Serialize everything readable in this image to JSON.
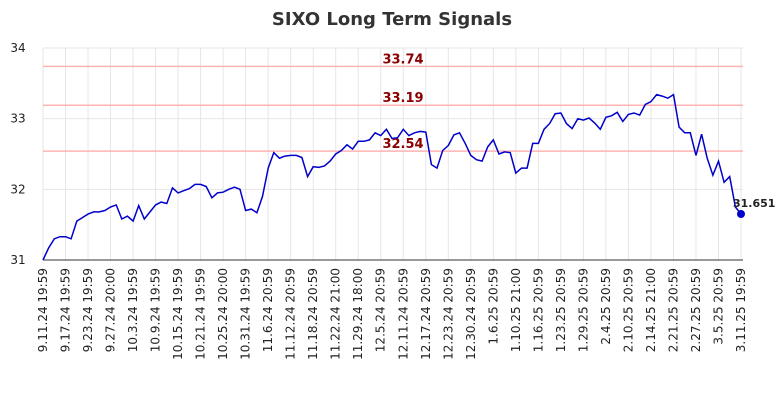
{
  "chart_data": {
    "type": "line",
    "title": "SIXO Long Term Signals",
    "categories": [
      "9.11.24 19:59",
      null,
      null,
      null,
      "9.17.24 19:59",
      null,
      null,
      null,
      "9.23.24 19:59",
      null,
      null,
      null,
      "9.27.24 20:00",
      null,
      null,
      null,
      "10.3.24 19:59",
      null,
      null,
      null,
      "10.9.24 19:59",
      null,
      null,
      null,
      "10.15.24 19:59",
      null,
      null,
      null,
      "10.21.24 19:59",
      null,
      null,
      null,
      "10.25.24 20:00",
      null,
      null,
      null,
      "10.31.24 19:59",
      null,
      null,
      null,
      "11.6.24 20:59",
      null,
      null,
      null,
      "11.12.24 20:59",
      null,
      null,
      null,
      "11.18.24 20:59",
      null,
      null,
      null,
      "11.22.24 21:00",
      null,
      null,
      null,
      "11.29.24 18:00",
      null,
      null,
      null,
      "12.5.24 20:59",
      null,
      null,
      null,
      "12.11.24 20:59",
      null,
      null,
      null,
      "12.17.24 20:59",
      null,
      null,
      null,
      "12.23.24 20:59",
      null,
      null,
      null,
      "12.30.24 20:59",
      null,
      null,
      null,
      "1.6.25 20:59",
      null,
      null,
      null,
      "1.10.25 21:00",
      null,
      null,
      null,
      "1.16.25 20:59",
      null,
      null,
      null,
      "1.23.25 20:59",
      null,
      null,
      null,
      "1.29.25 20:59",
      null,
      null,
      null,
      "2.4.25 20:59",
      null,
      null,
      null,
      "2.10.25 20:59",
      null,
      null,
      null,
      "2.14.25 21:00",
      null,
      null,
      null,
      "2.21.25 20:59",
      null,
      null,
      null,
      "2.27.25 20:59",
      null,
      null,
      null,
      "3.5.25 20:59",
      null,
      null,
      null,
      "3.11.25 19:59"
    ],
    "series": [
      {
        "color": "#0000cc",
        "values": [
          31.0,
          31.17,
          31.3,
          31.33,
          31.33,
          31.3,
          31.55,
          31.6,
          31.65,
          31.68,
          31.68,
          31.7,
          31.75,
          31.78,
          31.58,
          31.62,
          31.55,
          31.77,
          31.58,
          31.68,
          31.78,
          31.82,
          31.8,
          32.02,
          31.95,
          31.98,
          32.01,
          32.07,
          32.07,
          32.04,
          31.88,
          31.95,
          31.96,
          32.0,
          32.03,
          32.0,
          31.7,
          31.72,
          31.67,
          31.9,
          32.3,
          32.52,
          32.44,
          32.47,
          32.48,
          32.48,
          32.45,
          32.18,
          32.32,
          32.31,
          32.33,
          32.4,
          32.5,
          32.55,
          32.63,
          32.57,
          32.68,
          32.68,
          32.7,
          32.8,
          32.76,
          32.85,
          32.72,
          32.73,
          32.85,
          32.76,
          32.8,
          32.82,
          32.81,
          32.35,
          32.3,
          32.55,
          32.62,
          32.77,
          32.8,
          32.65,
          32.48,
          32.42,
          32.4,
          32.6,
          32.7,
          32.5,
          32.53,
          32.52,
          32.23,
          32.3,
          32.3,
          32.65,
          32.65,
          32.85,
          32.93,
          33.07,
          33.08,
          32.93,
          32.86,
          33.0,
          32.98,
          33.01,
          32.94,
          32.85,
          33.02,
          33.04,
          33.09,
          32.96,
          33.06,
          33.08,
          33.05,
          33.2,
          33.24,
          33.34,
          33.32,
          33.29,
          33.34,
          32.88,
          32.8,
          32.8,
          32.48,
          32.78,
          32.44,
          32.2,
          32.4,
          32.1,
          32.18,
          31.75,
          31.651
        ]
      }
    ],
    "reference_lines": [
      {
        "value": 33.74,
        "color": "#ffb3b3",
        "label_color": "#8b0000"
      },
      {
        "value": 33.19,
        "color": "#ffb3b3",
        "label_color": "#8b0000"
      },
      {
        "value": 32.54,
        "color": "#ffb3b3",
        "label_color": "#8b0000"
      }
    ],
    "ylim": [
      31,
      34
    ],
    "yticks": [
      31,
      32,
      33,
      34
    ],
    "grid": true
  }
}
